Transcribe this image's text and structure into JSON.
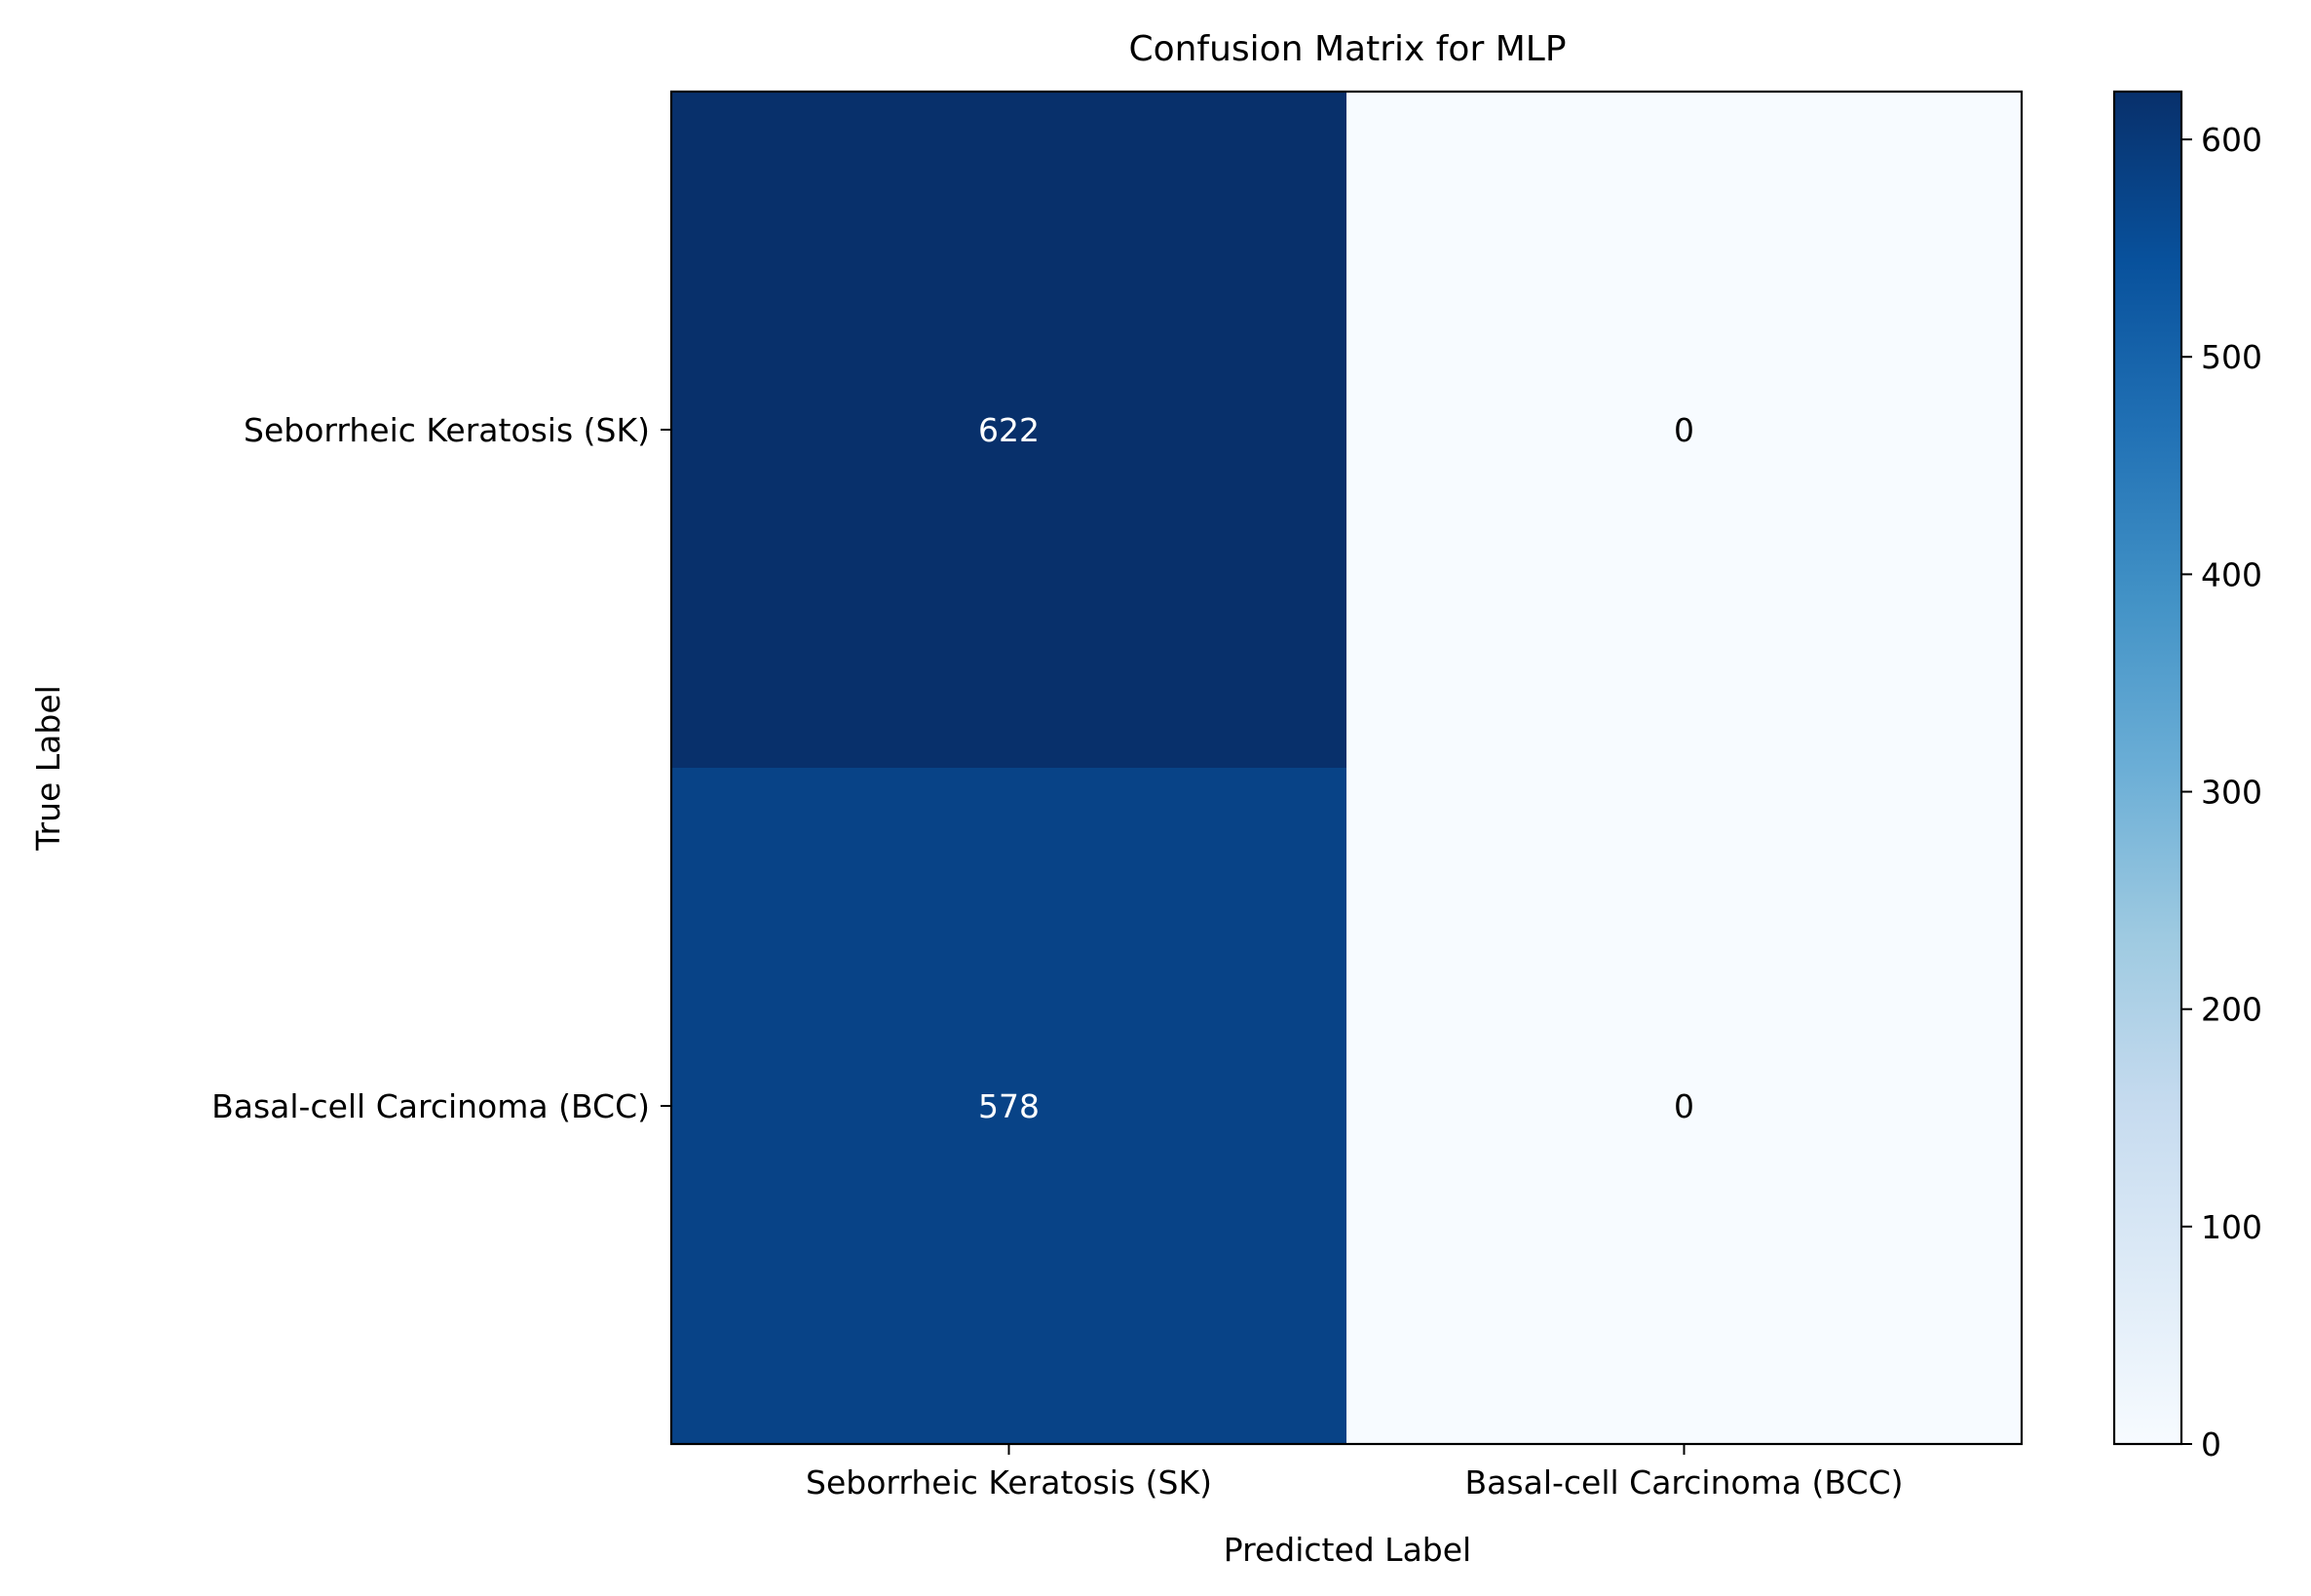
{
  "chart_data": {
    "type": "heatmap",
    "title": "Confusion Matrix for MLP",
    "xlabel": "Predicted Label",
    "ylabel": "True Label",
    "x_categories": [
      "Seborrheic Keratosis (SK)",
      "Basal-cell Carcinoma (BCC)"
    ],
    "y_categories": [
      "Seborrheic Keratosis (SK)",
      "Basal-cell Carcinoma (BCC)"
    ],
    "values": [
      [
        622,
        0
      ],
      [
        578,
        0
      ]
    ],
    "colormap": "Blues",
    "colorbar": {
      "min": 0,
      "max": 622,
      "ticks": [
        0,
        100,
        200,
        300,
        400,
        500,
        600
      ]
    },
    "colors": {
      "low": "#f7fbff",
      "high": "#08306b"
    }
  }
}
